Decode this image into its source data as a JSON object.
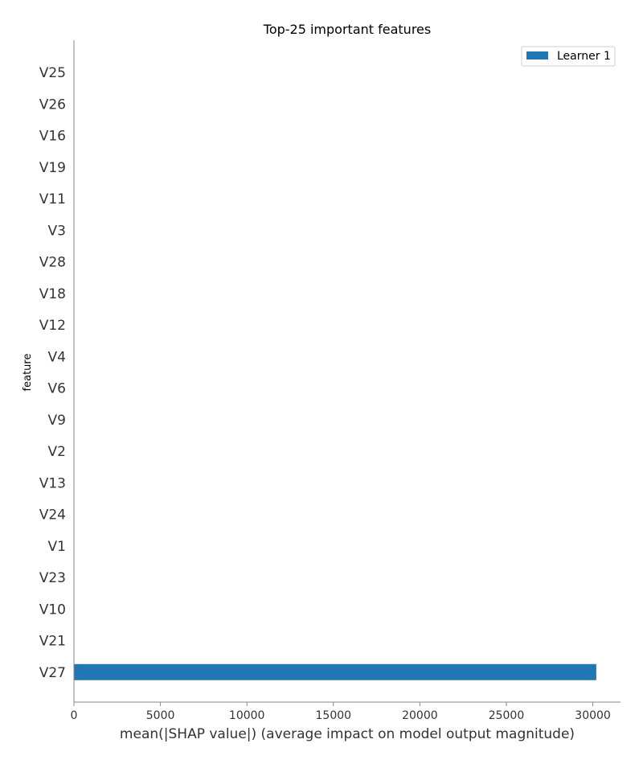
{
  "chart_data": {
    "type": "bar",
    "orientation": "horizontal",
    "title": "Top-25 important features",
    "xlabel": "mean(|SHAP value|) (average impact on model output magnitude)",
    "ylabel": "feature",
    "categories": [
      "V25",
      "V26",
      "V16",
      "V19",
      "V11",
      "V3",
      "V28",
      "V18",
      "V12",
      "V4",
      "V6",
      "V9",
      "V2",
      "V13",
      "V24",
      "V1",
      "V23",
      "V10",
      "V21",
      "V27"
    ],
    "series": [
      {
        "name": "Learner 1",
        "values": [
          0,
          0,
          0,
          0,
          0,
          0,
          0,
          0,
          0,
          0,
          0,
          0,
          0,
          0,
          0,
          0,
          0,
          0,
          0,
          30200
        ]
      }
    ],
    "xlim": [
      0,
      31600
    ],
    "xticks": [
      "0",
      "5000",
      "10000",
      "15000",
      "20000",
      "25000",
      "30000"
    ],
    "grid": false,
    "legend_position": "top-right",
    "colors": {
      "bar": "#1f77b4",
      "axis": "#888888"
    }
  }
}
